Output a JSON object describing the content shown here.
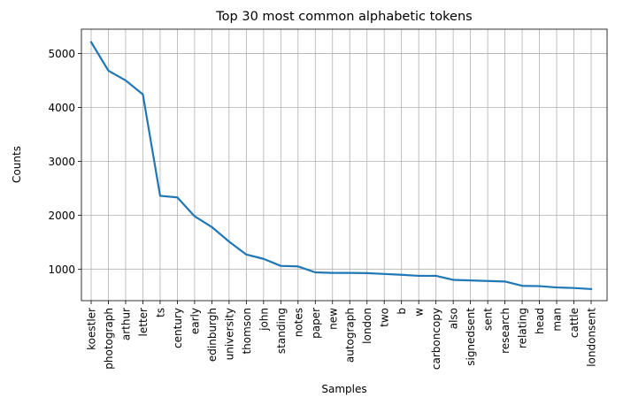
{
  "chart_data": {
    "type": "line",
    "title": "Top 30 most common alphabetic tokens",
    "xlabel": "Samples",
    "ylabel": "Counts",
    "categories": [
      "koestler",
      "photograph",
      "arthur",
      "letter",
      "ts",
      "century",
      "early",
      "edinburgh",
      "university",
      "thomson",
      "john",
      "standing",
      "notes",
      "paper",
      "new",
      "autograph",
      "london",
      "two",
      "b",
      "w",
      "carboncopy",
      "also",
      "signedsent",
      "sent",
      "research",
      "relating",
      "head",
      "man",
      "cattle",
      "londonsent"
    ],
    "values": [
      5210,
      4680,
      4500,
      4240,
      2360,
      2330,
      1980,
      1780,
      1510,
      1270,
      1190,
      1060,
      1050,
      940,
      930,
      930,
      925,
      910,
      895,
      875,
      875,
      800,
      790,
      780,
      770,
      690,
      685,
      660,
      650,
      630
    ],
    "yticks": [
      1000,
      2000,
      3000,
      4000,
      5000
    ],
    "ylim": [
      415,
      5450
    ],
    "grid": true,
    "line_color": "#1f77b4"
  }
}
